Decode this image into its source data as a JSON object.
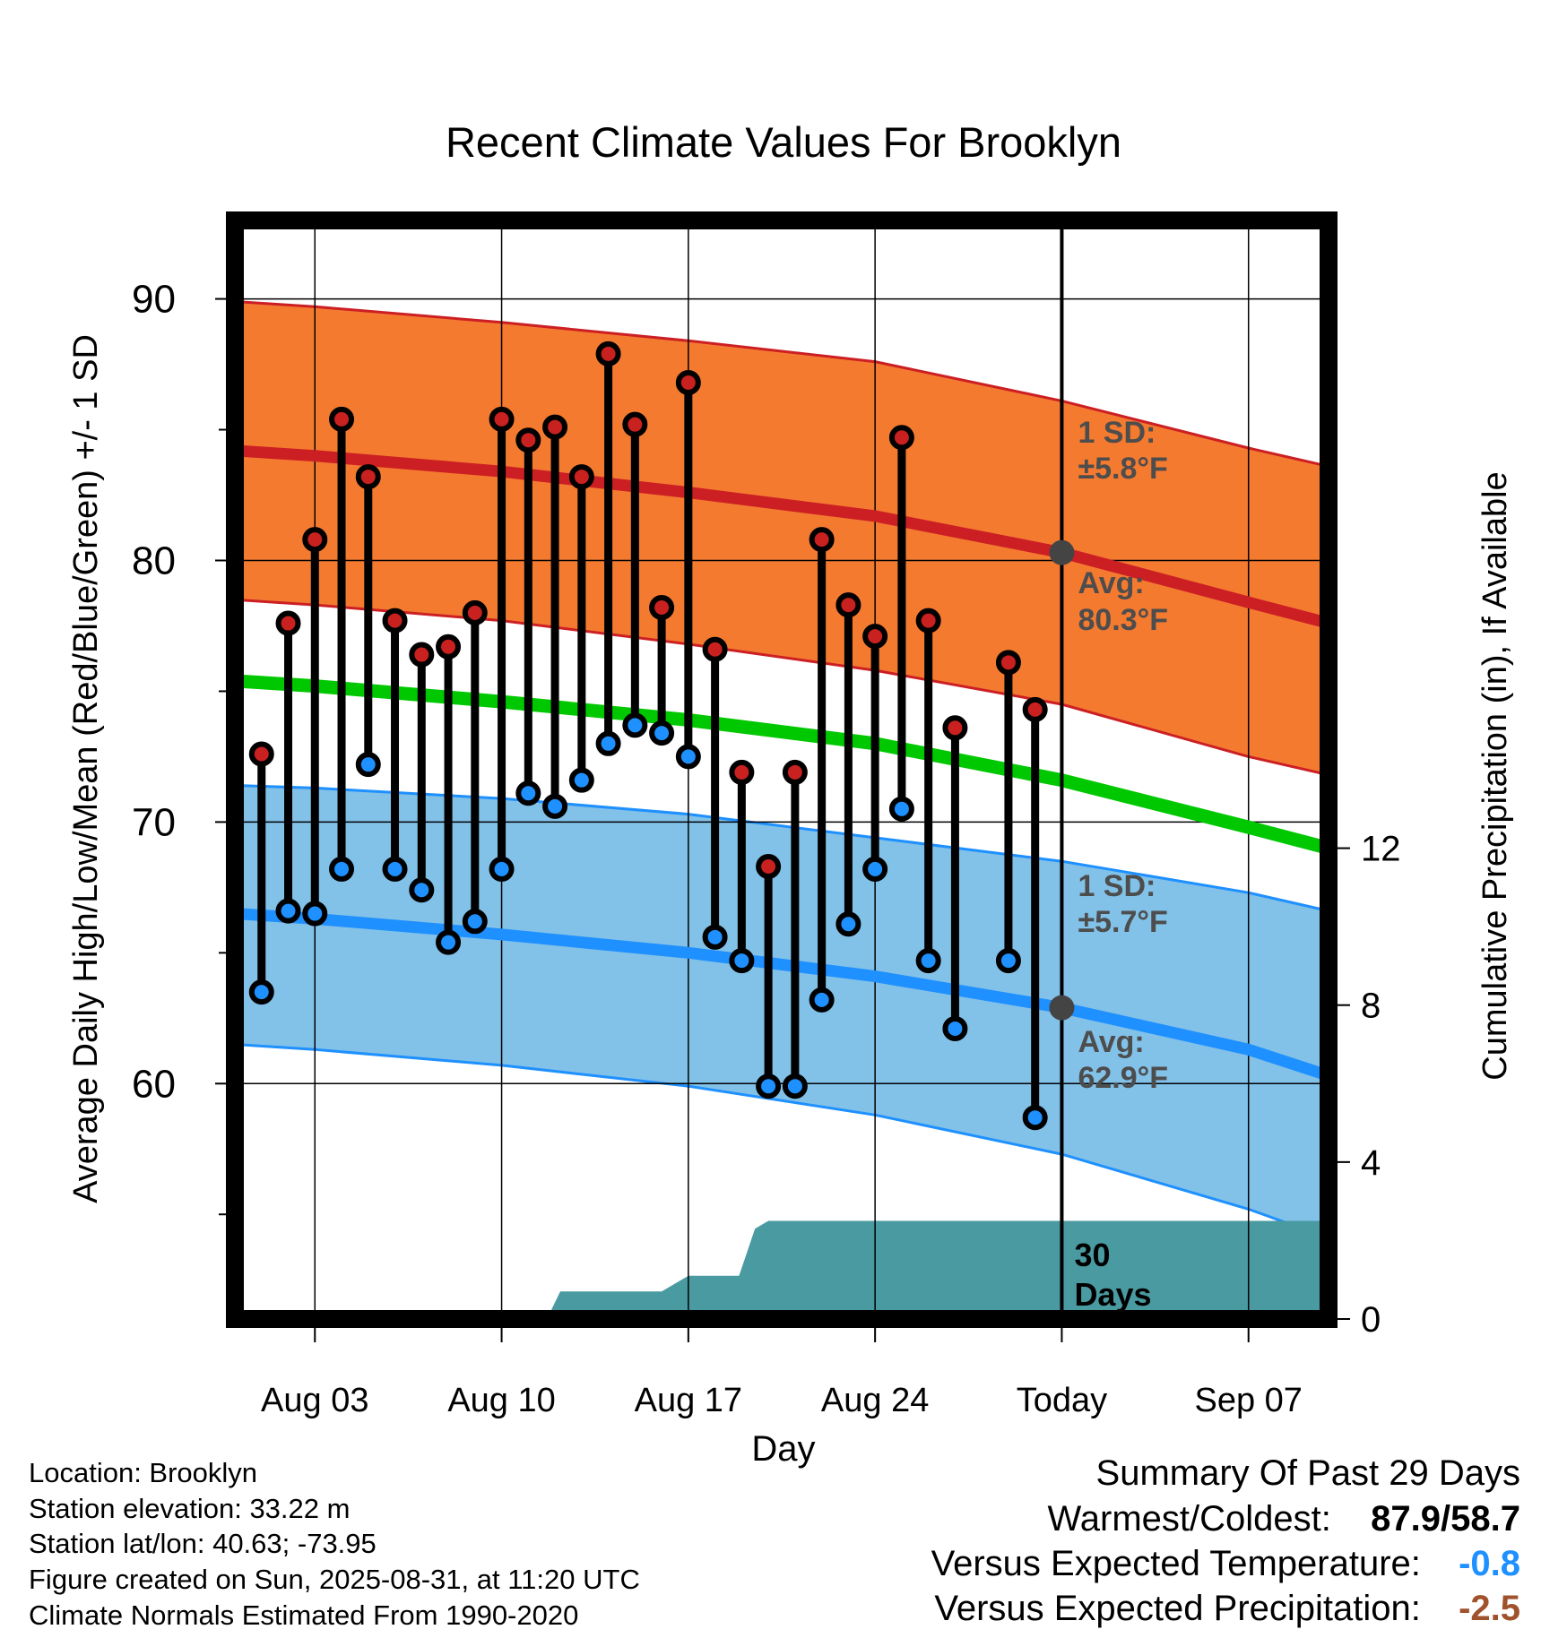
{
  "chart_data": {
    "type": "line",
    "title": "Recent Climate Values For Brooklyn",
    "xlabel": "Day",
    "ylabel": "Average Daily High/Low/Mean (Red/Blue/Green) +/- 1 SD",
    "y2label": "Cumulative Precipitation (in), If Available",
    "ylim": [
      51,
      93
    ],
    "y2lim": [
      0,
      28
    ],
    "y_ticks": [
      "60",
      "70",
      "80",
      "90"
    ],
    "y2_ticks": [
      "0",
      "4",
      "8",
      "12"
    ],
    "x_ticks": [
      "Aug 03",
      "Aug 10",
      "Aug 17",
      "Aug 24",
      "Today",
      "Sep 07"
    ],
    "grid": true,
    "today_label": "Today",
    "window_label_line1": "30",
    "window_label_line2": "Days",
    "normals": {
      "day": [
        0,
        3,
        10,
        17,
        24,
        31,
        38,
        41
      ],
      "high_avg": [
        84.2,
        84.0,
        83.4,
        82.6,
        81.7,
        80.3,
        78.4,
        77.6
      ],
      "high_upper": [
        89.9,
        89.7,
        89.1,
        88.4,
        87.6,
        86.1,
        84.3,
        83.6
      ],
      "high_lower": [
        78.5,
        78.3,
        77.7,
        76.8,
        75.8,
        74.5,
        72.5,
        71.8
      ],
      "mean_avg": [
        75.4,
        75.2,
        74.6,
        73.9,
        73.0,
        71.6,
        69.8,
        69.0
      ],
      "low_avg": [
        66.5,
        66.3,
        65.7,
        65.0,
        64.1,
        62.9,
        61.3,
        60.3
      ],
      "low_upper": [
        71.4,
        71.3,
        70.9,
        70.3,
        69.4,
        68.5,
        67.3,
        66.6
      ],
      "low_lower": [
        61.5,
        61.3,
        60.7,
        59.9,
        58.8,
        57.3,
        55.2,
        54.1
      ]
    },
    "series": [
      {
        "name": "High",
        "x": [
          1,
          2,
          3,
          4,
          5,
          6,
          7,
          8,
          9,
          10,
          11,
          12,
          13,
          14,
          15,
          16,
          17,
          18,
          19,
          20,
          21,
          22,
          23,
          24,
          25,
          26,
          27,
          29,
          30
        ],
        "values": [
          72.6,
          77.6,
          80.8,
          85.4,
          83.2,
          77.7,
          76.4,
          76.7,
          78.0,
          85.4,
          84.6,
          85.1,
          83.2,
          87.9,
          85.2,
          78.2,
          86.8,
          76.6,
          71.9,
          68.3,
          71.9,
          80.8,
          78.3,
          77.1,
          84.7,
          77.7,
          73.6,
          76.1,
          74.3
        ]
      },
      {
        "name": "Low",
        "x": [
          1,
          2,
          3,
          4,
          5,
          6,
          7,
          8,
          9,
          10,
          11,
          12,
          13,
          14,
          15,
          16,
          17,
          18,
          19,
          20,
          21,
          22,
          23,
          24,
          25,
          26,
          27,
          29,
          30
        ],
        "values": [
          63.5,
          66.6,
          66.5,
          68.2,
          72.2,
          68.2,
          67.4,
          65.4,
          66.2,
          68.2,
          71.1,
          70.6,
          71.6,
          73.0,
          73.7,
          73.4,
          72.5,
          65.6,
          64.7,
          59.9,
          59.9,
          63.2,
          66.1,
          68.2,
          70.5,
          64.7,
          62.1,
          64.7,
          58.7
        ]
      }
    ],
    "precip": {
      "x": [
        0,
        11.7,
        12.2,
        13,
        14,
        15,
        16,
        17,
        18,
        18.9,
        19.5,
        20,
        21,
        22,
        23,
        24,
        25,
        26,
        27,
        28,
        29,
        30,
        31,
        32,
        33,
        34,
        35,
        36,
        37,
        38,
        39,
        40,
        41
      ],
      "values": [
        0,
        0,
        0.7,
        0.7,
        0.7,
        0.7,
        0.7,
        1.1,
        1.1,
        1.1,
        2.3,
        2.5,
        2.5,
        2.5,
        2.5,
        2.5,
        2.5,
        2.5,
        2.5,
        2.5,
        2.5,
        2.5,
        2.5,
        2.5,
        2.5,
        2.5,
        2.5,
        2.5,
        2.5,
        2.5,
        2.5,
        2.5,
        2.5
      ]
    },
    "annotations": {
      "high_sd_line1": "1 SD:",
      "high_sd_line2": "±5.8°F",
      "high_avg_line1": "Avg:",
      "high_avg_line2": "80.3°F",
      "low_sd_line1": "1 SD:",
      "low_sd_line2": "±5.7°F",
      "low_avg_line1": "Avg:",
      "low_avg_line2": "62.9°F"
    },
    "colors": {
      "high_band": "#f47a30",
      "high_line": "#cc1f24",
      "low_band": "#82c1e8",
      "low_line": "#1e90ff",
      "mean_line": "#00c800",
      "precip": "#4a9aa2",
      "high_marker": "#c8211f",
      "low_marker": "#1e90ff",
      "annotation": "#4d4d4d"
    }
  },
  "info": {
    "location": "Location: Brooklyn",
    "elevation": "Station elevation: 33.22 m",
    "latlon": "Station lat/lon: 40.63; -73.95",
    "created": "Figure created on Sun, 2025-08-31, at 11:20 UTC",
    "normals": "Climate Normals Estimated From 1990-2020"
  },
  "summary": {
    "title": "Summary Of Past 29 Days",
    "warm_cold_label": "Warmest/Coldest:",
    "warm_cold_value": "87.9/58.7",
    "temp_label": "Versus Expected Temperature:",
    "temp_value": "-0.8",
    "temp_color": "#1e90ff",
    "precip_label": "Versus Expected Precipitation:",
    "precip_value": "-2.5",
    "precip_color": "#a0522d"
  }
}
